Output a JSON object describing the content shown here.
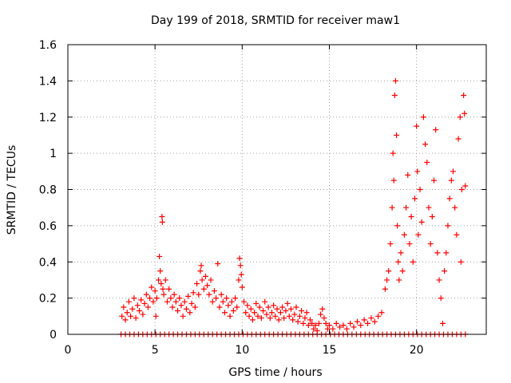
{
  "chart_data": {
    "type": "scatter",
    "title": "Day 199 of 2018, SRMTID for receiver maw1",
    "xlabel": "GPS time / hours",
    "ylabel": "SRMTID / TECUs",
    "xlim": [
      0,
      24
    ],
    "ylim": [
      0,
      1.6
    ],
    "grid": true,
    "marker": "+",
    "color": "#ff0000",
    "x_ticks": [
      0,
      5,
      10,
      15,
      20
    ],
    "x_tick_labels": [
      "0",
      "5",
      "10",
      "15",
      "20"
    ],
    "y_ticks": [
      0,
      0.2,
      0.4,
      0.6,
      0.8,
      1.0,
      1.2,
      1.4,
      1.6
    ],
    "y_tick_labels": [
      "0",
      "0.2",
      "0.4",
      "0.6",
      "0.8",
      "1",
      "1.2",
      "1.4",
      "1.6"
    ],
    "series": [
      {
        "name": "maw1",
        "points": [
          [
            3.05,
            0.0
          ],
          [
            3.3,
            0.0
          ],
          [
            3.55,
            0.0
          ],
          [
            3.8,
            0.0
          ],
          [
            4.05,
            0.0
          ],
          [
            4.3,
            0.0
          ],
          [
            4.55,
            0.0
          ],
          [
            4.8,
            0.0
          ],
          [
            5.05,
            0.0
          ],
          [
            5.3,
            0.0
          ],
          [
            5.55,
            0.0
          ],
          [
            5.8,
            0.0
          ],
          [
            6.05,
            0.0
          ],
          [
            6.3,
            0.0
          ],
          [
            6.55,
            0.0
          ],
          [
            6.8,
            0.0
          ],
          [
            7.05,
            0.0
          ],
          [
            7.3,
            0.0
          ],
          [
            7.55,
            0.0
          ],
          [
            7.8,
            0.0
          ],
          [
            8.05,
            0.0
          ],
          [
            8.3,
            0.0
          ],
          [
            8.55,
            0.0
          ],
          [
            8.8,
            0.0
          ],
          [
            9.05,
            0.0
          ],
          [
            9.3,
            0.0
          ],
          [
            9.55,
            0.0
          ],
          [
            9.8,
            0.0
          ],
          [
            10.05,
            0.0
          ],
          [
            10.3,
            0.0
          ],
          [
            10.55,
            0.0
          ],
          [
            10.8,
            0.0
          ],
          [
            11.05,
            0.0
          ],
          [
            11.3,
            0.0
          ],
          [
            11.55,
            0.0
          ],
          [
            11.8,
            0.0
          ],
          [
            12.05,
            0.0
          ],
          [
            12.3,
            0.0
          ],
          [
            12.55,
            0.0
          ],
          [
            12.8,
            0.0
          ],
          [
            13.05,
            0.0
          ],
          [
            13.3,
            0.0
          ],
          [
            13.55,
            0.0
          ],
          [
            13.8,
            0.0
          ],
          [
            14.05,
            0.0
          ],
          [
            14.3,
            0.0
          ],
          [
            14.55,
            0.0
          ],
          [
            14.8,
            0.0
          ],
          [
            15.05,
            0.0
          ],
          [
            15.3,
            0.0
          ],
          [
            15.55,
            0.0
          ],
          [
            15.8,
            0.0
          ],
          [
            16.05,
            0.0
          ],
          [
            16.3,
            0.0
          ],
          [
            16.55,
            0.0
          ],
          [
            16.8,
            0.0
          ],
          [
            17.05,
            0.0
          ],
          [
            17.3,
            0.0
          ],
          [
            17.55,
            0.0
          ],
          [
            17.8,
            0.0
          ],
          [
            18.05,
            0.0
          ],
          [
            18.3,
            0.0
          ],
          [
            18.55,
            0.0
          ],
          [
            18.8,
            0.0
          ],
          [
            19.05,
            0.0
          ],
          [
            19.3,
            0.0
          ],
          [
            19.55,
            0.0
          ],
          [
            19.8,
            0.0
          ],
          [
            20.05,
            0.0
          ],
          [
            20.3,
            0.0
          ],
          [
            20.55,
            0.0
          ],
          [
            20.8,
            0.0
          ],
          [
            21.05,
            0.0
          ],
          [
            21.3,
            0.0
          ],
          [
            21.55,
            0.0
          ],
          [
            21.8,
            0.0
          ],
          [
            22.05,
            0.0
          ],
          [
            22.3,
            0.0
          ],
          [
            22.55,
            0.0
          ],
          [
            22.8,
            0.0
          ],
          [
            3.1,
            0.1
          ],
          [
            3.2,
            0.15
          ],
          [
            3.3,
            0.08
          ],
          [
            3.4,
            0.12
          ],
          [
            3.5,
            0.18
          ],
          [
            3.6,
            0.1
          ],
          [
            3.7,
            0.14
          ],
          [
            3.8,
            0.2
          ],
          [
            3.9,
            0.09
          ],
          [
            4.0,
            0.16
          ],
          [
            4.1,
            0.13
          ],
          [
            4.2,
            0.19
          ],
          [
            4.3,
            0.11
          ],
          [
            4.4,
            0.17
          ],
          [
            4.5,
            0.22
          ],
          [
            4.6,
            0.15
          ],
          [
            4.7,
            0.2
          ],
          [
            4.8,
            0.26
          ],
          [
            4.9,
            0.18
          ],
          [
            5.0,
            0.24
          ],
          [
            5.05,
            0.1
          ],
          [
            5.1,
            0.2
          ],
          [
            5.2,
            0.3
          ],
          [
            5.25,
            0.43
          ],
          [
            5.3,
            0.35
          ],
          [
            5.35,
            0.28
          ],
          [
            5.4,
            0.65
          ],
          [
            5.42,
            0.62
          ],
          [
            5.45,
            0.25
          ],
          [
            5.5,
            0.22
          ],
          [
            5.6,
            0.3
          ],
          [
            5.7,
            0.18
          ],
          [
            5.8,
            0.25
          ],
          [
            5.9,
            0.2
          ],
          [
            6.0,
            0.15
          ],
          [
            6.1,
            0.22
          ],
          [
            6.2,
            0.18
          ],
          [
            6.3,
            0.13
          ],
          [
            6.4,
            0.2
          ],
          [
            6.5,
            0.16
          ],
          [
            6.6,
            0.1
          ],
          [
            6.7,
            0.18
          ],
          [
            6.8,
            0.14
          ],
          [
            6.9,
            0.21
          ],
          [
            7.0,
            0.12
          ],
          [
            7.1,
            0.17
          ],
          [
            7.2,
            0.23
          ],
          [
            7.3,
            0.15
          ],
          [
            7.4,
            0.28
          ],
          [
            7.5,
            0.22
          ],
          [
            7.6,
            0.35
          ],
          [
            7.65,
            0.38
          ],
          [
            7.7,
            0.3
          ],
          [
            7.8,
            0.25
          ],
          [
            7.9,
            0.32
          ],
          [
            8.0,
            0.27
          ],
          [
            8.1,
            0.22
          ],
          [
            8.2,
            0.3
          ],
          [
            8.3,
            0.18
          ],
          [
            8.4,
            0.24
          ],
          [
            8.5,
            0.2
          ],
          [
            8.6,
            0.39
          ],
          [
            8.7,
            0.15
          ],
          [
            8.8,
            0.22
          ],
          [
            8.9,
            0.18
          ],
          [
            9.0,
            0.12
          ],
          [
            9.1,
            0.2
          ],
          [
            9.2,
            0.16
          ],
          [
            9.3,
            0.1
          ],
          [
            9.4,
            0.18
          ],
          [
            9.5,
            0.13
          ],
          [
            9.6,
            0.2
          ],
          [
            9.7,
            0.15
          ],
          [
            9.8,
            0.3
          ],
          [
            9.85,
            0.42
          ],
          [
            9.9,
            0.38
          ],
          [
            9.95,
            0.33
          ],
          [
            10.0,
            0.26
          ],
          [
            10.1,
            0.18
          ],
          [
            10.2,
            0.12
          ],
          [
            10.3,
            0.16
          ],
          [
            10.4,
            0.1
          ],
          [
            10.5,
            0.14
          ],
          [
            10.6,
            0.08
          ],
          [
            10.7,
            0.12
          ],
          [
            10.8,
            0.17
          ],
          [
            10.9,
            0.1
          ],
          [
            11.0,
            0.15
          ],
          [
            11.1,
            0.09
          ],
          [
            11.2,
            0.13
          ],
          [
            11.3,
            0.18
          ],
          [
            11.4,
            0.11
          ],
          [
            11.5,
            0.15
          ],
          [
            11.6,
            0.09
          ],
          [
            11.7,
            0.12
          ],
          [
            11.8,
            0.16
          ],
          [
            11.9,
            0.1
          ],
          [
            12.0,
            0.14
          ],
          [
            12.1,
            0.08
          ],
          [
            12.2,
            0.12
          ],
          [
            12.3,
            0.15
          ],
          [
            12.4,
            0.09
          ],
          [
            12.5,
            0.13
          ],
          [
            12.6,
            0.17
          ],
          [
            12.7,
            0.1
          ],
          [
            12.8,
            0.14
          ],
          [
            12.9,
            0.08
          ],
          [
            13.0,
            0.11
          ],
          [
            13.1,
            0.15
          ],
          [
            13.2,
            0.07
          ],
          [
            13.3,
            0.1
          ],
          [
            13.4,
            0.13
          ],
          [
            13.5,
            0.06
          ],
          [
            13.6,
            0.09
          ],
          [
            13.7,
            0.12
          ],
          [
            13.8,
            0.05
          ],
          [
            13.9,
            0.08
          ],
          [
            14.0,
            0.06
          ],
          [
            14.1,
            0.03
          ],
          [
            14.2,
            0.05
          ],
          [
            14.3,
            0.02
          ],
          [
            14.4,
            0.06
          ],
          [
            14.5,
            0.11
          ],
          [
            14.6,
            0.14
          ],
          [
            14.7,
            0.09
          ],
          [
            14.8,
            0.06
          ],
          [
            14.9,
            0.03
          ],
          [
            15.0,
            0.05
          ],
          [
            15.2,
            0.03
          ],
          [
            15.4,
            0.06
          ],
          [
            15.6,
            0.04
          ],
          [
            15.8,
            0.05
          ],
          [
            16.0,
            0.03
          ],
          [
            16.2,
            0.06
          ],
          [
            16.4,
            0.04
          ],
          [
            16.6,
            0.07
          ],
          [
            16.8,
            0.05
          ],
          [
            17.0,
            0.08
          ],
          [
            17.2,
            0.06
          ],
          [
            17.4,
            0.09
          ],
          [
            17.6,
            0.07
          ],
          [
            17.8,
            0.1
          ],
          [
            18.0,
            0.12
          ],
          [
            18.2,
            0.25
          ],
          [
            18.3,
            0.3
          ],
          [
            18.4,
            0.35
          ],
          [
            18.5,
            0.5
          ],
          [
            18.6,
            0.7
          ],
          [
            18.65,
            1.0
          ],
          [
            18.7,
            0.85
          ],
          [
            18.75,
            1.32
          ],
          [
            18.8,
            1.4
          ],
          [
            18.85,
            1.1
          ],
          [
            18.9,
            0.6
          ],
          [
            18.95,
            0.4
          ],
          [
            19.0,
            0.3
          ],
          [
            19.1,
            0.45
          ],
          [
            19.2,
            0.35
          ],
          [
            19.3,
            0.55
          ],
          [
            19.4,
            0.7
          ],
          [
            19.5,
            0.88
          ],
          [
            19.6,
            0.5
          ],
          [
            19.7,
            0.65
          ],
          [
            19.8,
            0.4
          ],
          [
            19.9,
            0.75
          ],
          [
            20.0,
            1.15
          ],
          [
            20.05,
            0.9
          ],
          [
            20.1,
            0.55
          ],
          [
            20.2,
            0.8
          ],
          [
            20.3,
            0.62
          ],
          [
            20.4,
            1.2
          ],
          [
            20.5,
            1.05
          ],
          [
            20.6,
            0.95
          ],
          [
            20.7,
            0.7
          ],
          [
            20.8,
            0.5
          ],
          [
            20.9,
            0.65
          ],
          [
            21.0,
            0.85
          ],
          [
            21.1,
            1.13
          ],
          [
            21.2,
            0.45
          ],
          [
            21.3,
            0.3
          ],
          [
            21.4,
            0.2
          ],
          [
            21.5,
            0.06
          ],
          [
            21.6,
            0.35
          ],
          [
            21.7,
            0.45
          ],
          [
            21.8,
            0.6
          ],
          [
            21.9,
            0.75
          ],
          [
            22.0,
            0.85
          ],
          [
            22.1,
            0.9
          ],
          [
            22.2,
            0.7
          ],
          [
            22.3,
            0.55
          ],
          [
            22.4,
            1.08
          ],
          [
            22.5,
            1.2
          ],
          [
            22.55,
            0.4
          ],
          [
            22.6,
            0.8
          ],
          [
            22.7,
            1.32
          ],
          [
            22.75,
            1.22
          ],
          [
            22.8,
            0.82
          ]
        ]
      }
    ]
  }
}
